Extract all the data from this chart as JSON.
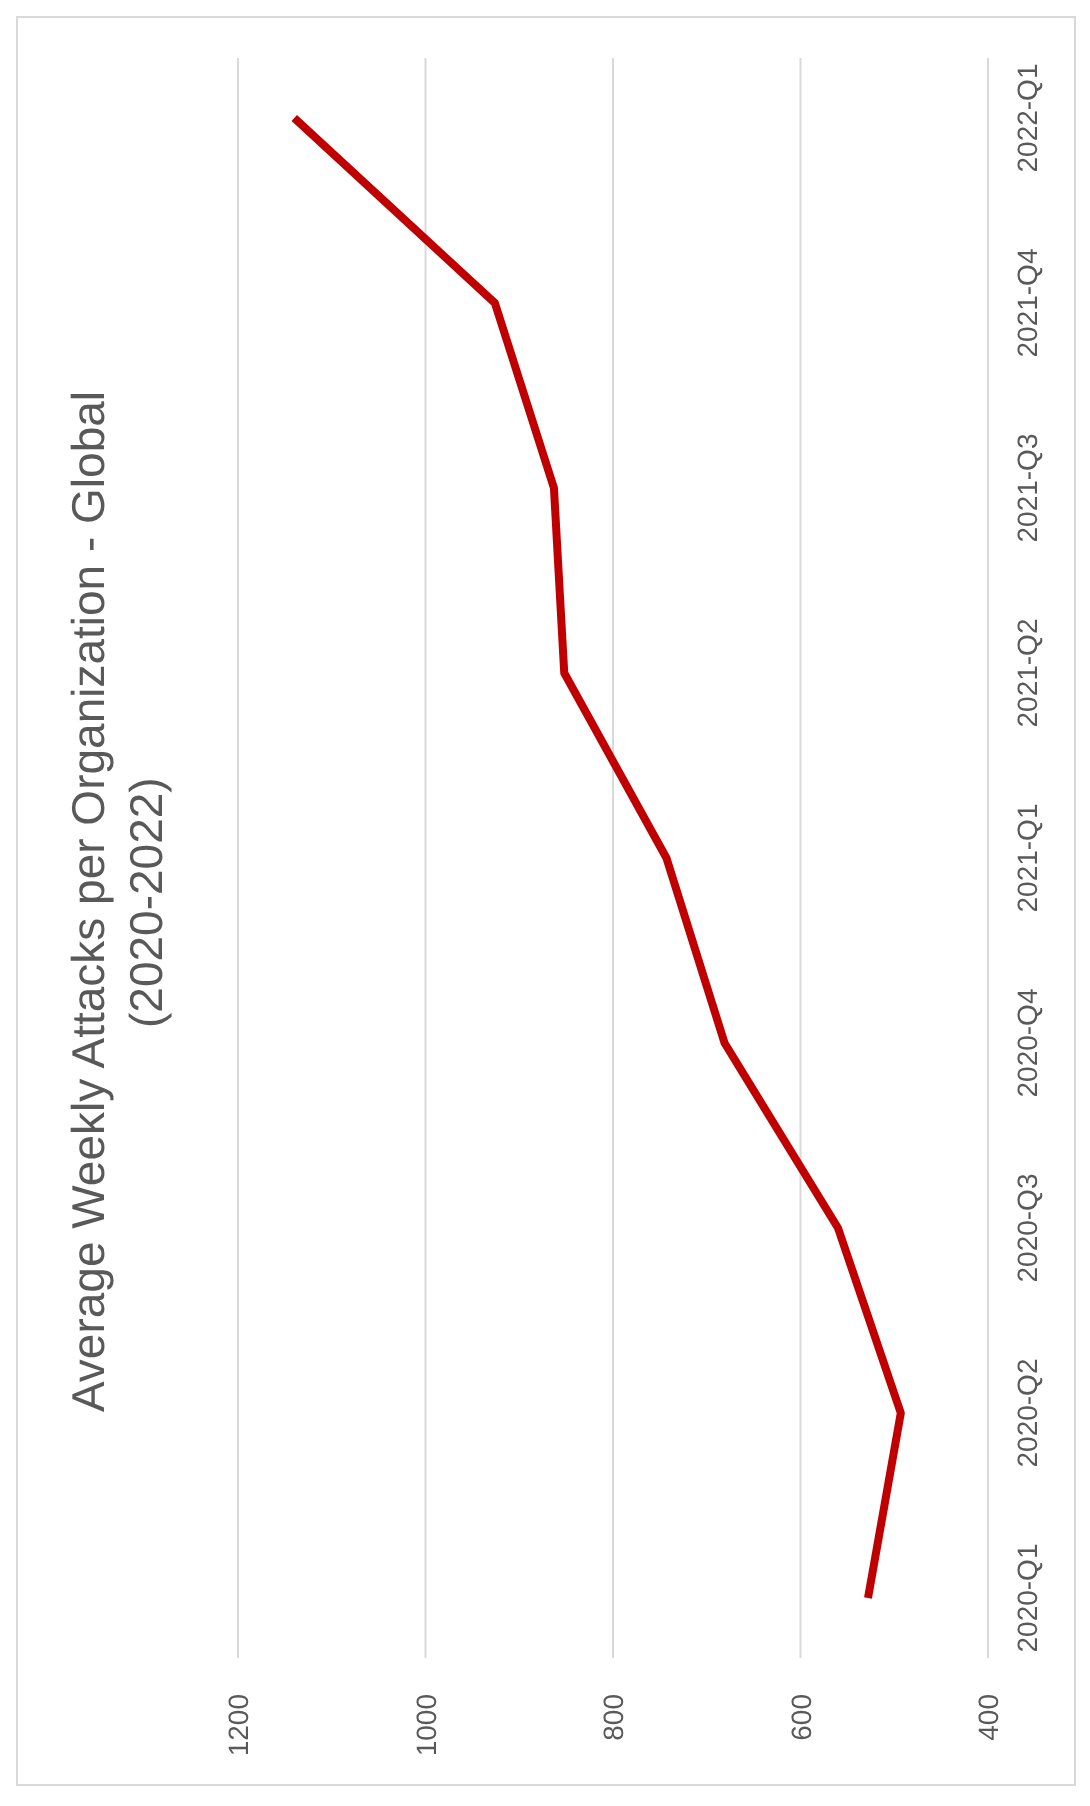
{
  "chart_data": {
    "type": "line",
    "title": "Average Weekly Attacks per Organization - Global (2020-2022)",
    "orientation": "horizontal",
    "categories": [
      "2022-Q1",
      "2021-Q4",
      "2021-Q3",
      "2021-Q2",
      "2021-Q1",
      "2020-Q4",
      "2020-Q3",
      "2020-Q2",
      "2020-Q1"
    ],
    "series": [
      {
        "color": "#c00000",
        "values": [
          1140,
          926,
          863,
          852,
          743,
          681,
          560,
          493,
          528
        ]
      }
    ],
    "xlim": [
      1200,
      400
    ],
    "xticks": [
      1200,
      1000,
      800,
      600,
      400
    ],
    "grid": "x",
    "marker": "none",
    "line_style": "solid"
  }
}
